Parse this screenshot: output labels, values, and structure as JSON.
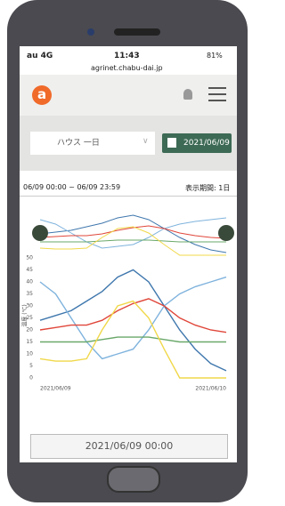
{
  "status": {
    "carrier": "au 4G",
    "time": "11:43",
    "battery": "81%",
    "url": "agrinet.chabu-dai.jp"
  },
  "header": {
    "logo": "a"
  },
  "controls": {
    "house_select": "ハウス 一日",
    "date_button": "2021/06/09"
  },
  "range": {
    "period": "06/09 00:00 ~ 06/09 23:59",
    "display": "表示期間: 1日"
  },
  "chart_data": {
    "type": "line",
    "y_label": "温度 (℃)",
    "categories": [
      "2021/06/09",
      null,
      null,
      null,
      null,
      null,
      null,
      null,
      null,
      null,
      null,
      null,
      "2021/06/10"
    ],
    "series": [
      {
        "color": "#3f77ad",
        "values": [
          24,
          26,
          28,
          32,
          36,
          42,
          45,
          40,
          30,
          20,
          12,
          6,
          3
        ]
      },
      {
        "color": "#7fb3dd",
        "values": [
          40,
          35,
          25,
          15,
          8,
          10,
          12,
          20,
          30,
          35,
          38,
          40,
          42
        ]
      },
      {
        "color": "#e0463a",
        "values": [
          20,
          21,
          22,
          22,
          24,
          28,
          31,
          33,
          30,
          25,
          22,
          20,
          19
        ]
      },
      {
        "color": "#6aa86a",
        "values": [
          15,
          15,
          15,
          15,
          16,
          17,
          17,
          17,
          16,
          15,
          15,
          15,
          15
        ]
      },
      {
        "color": "#f0d84a",
        "values": [
          8,
          7,
          7,
          8,
          20,
          30,
          32,
          25,
          12,
          0,
          0,
          0,
          0
        ]
      }
    ],
    "ylim": [
      0,
      50
    ],
    "yticks": [
      0,
      5,
      10,
      15,
      20,
      25,
      30,
      35,
      40,
      45,
      50
    ],
    "grid": false
  },
  "footer": {
    "time_button": "2021/06/09 00:00"
  }
}
